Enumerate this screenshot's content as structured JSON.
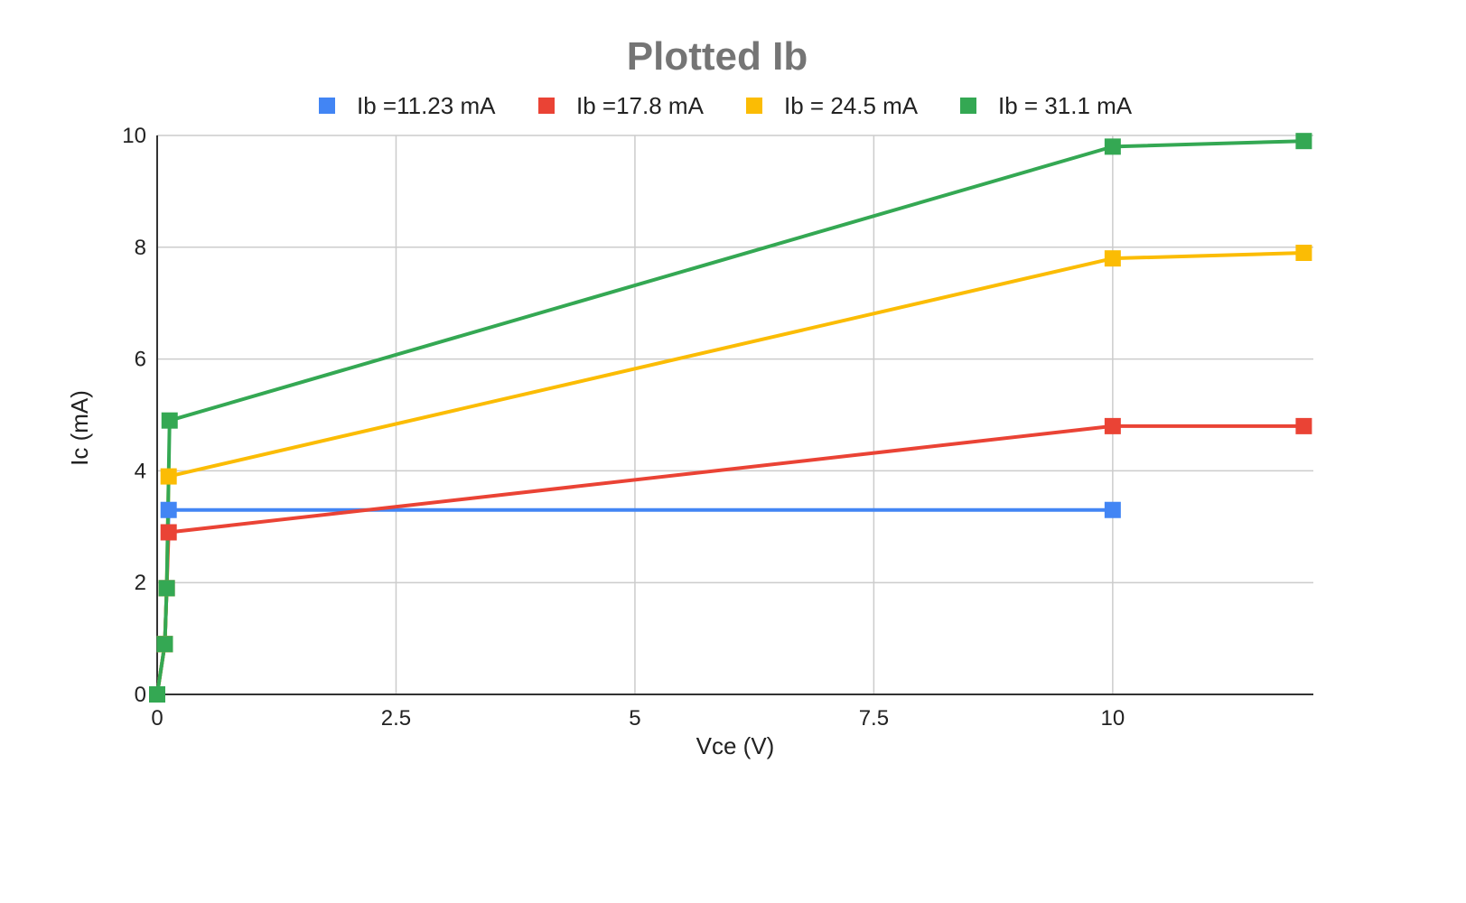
{
  "chart_data": {
    "type": "line",
    "title": "Plotted Ib",
    "xlabel": "Vce (V)",
    "ylabel": "Ic (mA)",
    "xlim": [
      0,
      12.1
    ],
    "ylim": [
      0,
      10
    ],
    "x_ticks": [
      0,
      2.5,
      5,
      7.5,
      10
    ],
    "x_tick_labels": [
      "0",
      "2.5",
      "5",
      "7.5",
      "10"
    ],
    "y_ticks": [
      0,
      2,
      4,
      6,
      8,
      10
    ],
    "y_tick_labels": [
      "0",
      "2",
      "4",
      "6",
      "8",
      "10"
    ],
    "grid": true,
    "legend_position": "top",
    "marker": "square",
    "series": [
      {
        "name": "Ib =11.23 mA",
        "color": "#4285f4",
        "points": [
          [
            0,
            0
          ],
          [
            0.08,
            0.9
          ],
          [
            0.1,
            1.9
          ],
          [
            0.12,
            3.3
          ],
          [
            10,
            3.3
          ]
        ]
      },
      {
        "name": "Ib =17.8 mA",
        "color": "#ea4335",
        "points": [
          [
            0,
            0
          ],
          [
            0.08,
            0.9
          ],
          [
            0.1,
            1.9
          ],
          [
            0.12,
            2.9
          ],
          [
            10,
            4.8
          ],
          [
            12,
            4.8
          ]
        ]
      },
      {
        "name": "Ib = 24.5 mA",
        "color": "#fbbc04",
        "points": [
          [
            0,
            0
          ],
          [
            0.08,
            0.9
          ],
          [
            0.1,
            1.9
          ],
          [
            0.12,
            3.9
          ],
          [
            10,
            7.8
          ],
          [
            12,
            7.9
          ]
        ]
      },
      {
        "name": "Ib = 31.1 mA",
        "color": "#34a853",
        "points": [
          [
            0,
            0
          ],
          [
            0.08,
            0.9
          ],
          [
            0.1,
            1.9
          ],
          [
            0.13,
            4.9
          ],
          [
            10,
            9.8
          ],
          [
            12,
            9.9
          ]
        ]
      }
    ]
  }
}
